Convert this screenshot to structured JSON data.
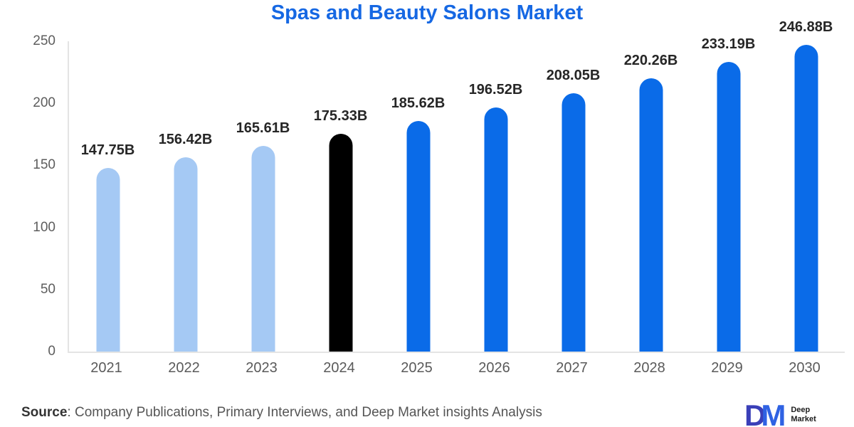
{
  "chart_data": {
    "type": "bar",
    "title": "Spas and Beauty Salons Market",
    "categories": [
      "2021",
      "2022",
      "2023",
      "2024",
      "2025",
      "2026",
      "2027",
      "2028",
      "2029",
      "2030"
    ],
    "values": [
      147.75,
      156.42,
      165.61,
      175.33,
      185.62,
      196.52,
      208.05,
      220.26,
      233.19,
      246.88
    ],
    "value_labels": [
      "147.75B",
      "156.42B",
      "165.61B",
      "175.33B",
      "185.62B",
      "196.52B",
      "208.05B",
      "220.26B",
      "233.19B",
      "246.88B"
    ],
    "bar_colors": [
      "#A5C9F4",
      "#A5C9F4",
      "#A5C9F4",
      "#000000",
      "#0A6BE8",
      "#0A6BE8",
      "#0A6BE8",
      "#0A6BE8",
      "#0A6BE8",
      "#0A6BE8"
    ],
    "ylim": [
      0,
      250
    ],
    "yticks": [
      250,
      200,
      150,
      100,
      50,
      0
    ],
    "xlabel": "",
    "ylabel": "",
    "grid": false,
    "legend": false,
    "title_color": "#1668E3",
    "axis_line_color": "#e4e4e4",
    "tick_text_color": "#5a5a5a",
    "value_label_color": "#262626"
  },
  "footer": {
    "source_label": "Source",
    "source_text": ": Company Publications, Primary Interviews, and Deep Market insights Analysis",
    "logo": {
      "letter_d": "D",
      "letter_m": "M",
      "name_line1": "Deep",
      "name_line2": "Market",
      "d_color": "#3A3FB8",
      "m_color": "#2F62E3"
    }
  }
}
